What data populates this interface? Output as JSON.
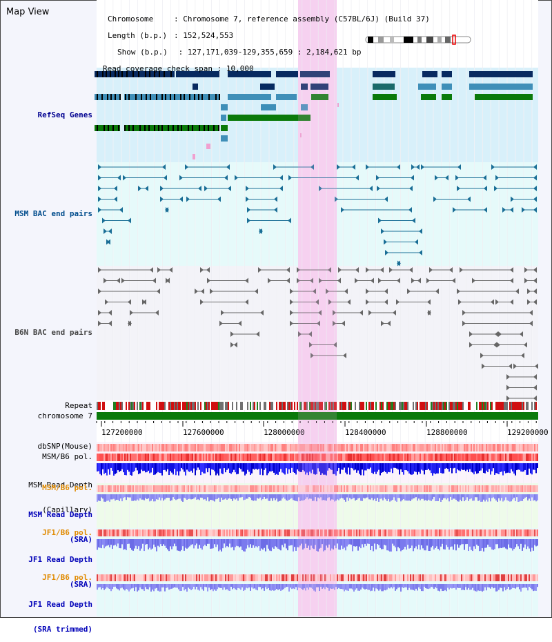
{
  "page": {
    "title": "Map View"
  },
  "info": {
    "chromosome_label": "Chromosome",
    "chromosome_value": "Chromosome 7, reference assembly (C57BL/6J) (Build 37)",
    "length_label": "Length (b.p.)",
    "length_value": "152,524,553",
    "show_label": "Show (b.p.)",
    "show_value": "127,171,039-129,355,659 : 2,184,621 bp",
    "coverage_label": "Read coverage check span",
    "coverage_value": "10,000"
  },
  "tracks": {
    "refseq": "RefSeq Genes",
    "msm_bac": "MSM BAC end pairs",
    "b6n_bac": "B6N BAC end pairs",
    "repeat": "Repeat",
    "chromosome": "chromosome 7",
    "dbsnp": "dbSNP(Mouse)",
    "msm_b6_pol": "MSM/B6 pol.",
    "msm_depth_cap_1": "MSM Read Depth",
    "msm_depth_cap_2": "(Capillary)",
    "msm_b6_pol_2": "MSM/B6 pol.",
    "msm_depth_sra_1": "MSM Read Depth",
    "msm_depth_sra_2": "(SRA)",
    "jf1_b6_pol": "JF1/B6 pol.",
    "jf1_depth_sra_1": "JF1 Read Depth",
    "jf1_depth_sra_2": "(SRA)",
    "jf1_b6_pol_2": "JF1/B6 pol.",
    "jf1_depth_trim_1": "JF1 Read Depth",
    "jf1_depth_trim_2": "(SRA trimmed)"
  },
  "axis": {
    "ticks": [
      "127200000",
      "127600000",
      "128000000",
      "128400000",
      "128800000",
      "129200000"
    ]
  },
  "colors": {
    "refseq_bg": "#d8f0fa",
    "msm_bg": "#e6fafa",
    "b6n_bg": "#f3f3f8",
    "highlight": "#f8d8f2",
    "chromosome": "#0a7a0a",
    "refseq_label": "#000090",
    "msm_label": "#004c8c",
    "b6n_label": "#444444",
    "pol_orange": "#e08a00",
    "depth_blue": "#0000b8"
  }
}
